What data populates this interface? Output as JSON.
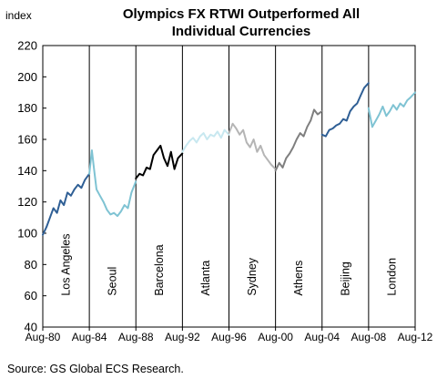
{
  "chart_data": {
    "type": "line",
    "title_lines": [
      "Olympics FX RTWI  Outperformed  All",
      "Individual Currencies"
    ],
    "ylabel": "index",
    "ylim": [
      40,
      220
    ],
    "yticks": [
      "40",
      "60",
      "80",
      "100",
      "120",
      "140",
      "160",
      "180",
      "200",
      "220"
    ],
    "xlim": [
      1980.583,
      2012.583
    ],
    "x_tick_labels": [
      "Aug-80",
      "Aug-84",
      "Aug-88",
      "Aug-92",
      "Aug-96",
      "Aug-00",
      "Aug-04",
      "Aug-08",
      "Aug-12"
    ],
    "grid": false,
    "source": "Source: GS Global ECS Research.",
    "periods": [
      {
        "label": "Los Angeles",
        "color": "#2f5f95",
        "x": [
          1980.58,
          1980.9,
          1981.2,
          1981.5,
          1981.8,
          1982.1,
          1982.4,
          1982.7,
          1983.0,
          1983.3,
          1983.6,
          1983.9,
          1984.2,
          1984.58
        ],
        "y": [
          99,
          104,
          110,
          116,
          113,
          121,
          118,
          126,
          124,
          128,
          131,
          129,
          134,
          138
        ]
      },
      {
        "label": "Seoul",
        "color": "#7fc3d3",
        "x": [
          1984.58,
          1984.8,
          1985.0,
          1985.2,
          1985.5,
          1985.8,
          1986.1,
          1986.4,
          1986.7,
          1987.0,
          1987.3,
          1987.6,
          1987.9,
          1988.2,
          1988.58
        ],
        "y": [
          138,
          153,
          140,
          128,
          124,
          120,
          115,
          112,
          113,
          111,
          114,
          118,
          116,
          126,
          133
        ]
      },
      {
        "label": "Barcelona",
        "color": "#000000",
        "x": [
          1988.58,
          1988.9,
          1989.2,
          1989.5,
          1989.8,
          1990.1,
          1990.4,
          1990.7,
          1991.0,
          1991.3,
          1991.6,
          1991.9,
          1992.2,
          1992.58
        ],
        "y": [
          135,
          138,
          137,
          142,
          141,
          150,
          153,
          156,
          148,
          143,
          152,
          141,
          148,
          151
        ]
      },
      {
        "label": "Atlanta",
        "color": "#c8e8f0",
        "x": [
          1992.58,
          1992.9,
          1993.2,
          1993.5,
          1993.8,
          1994.1,
          1994.4,
          1994.7,
          1995.0,
          1995.3,
          1995.6,
          1995.9,
          1996.2,
          1996.58
        ],
        "y": [
          152,
          156,
          159,
          161,
          158,
          162,
          164,
          160,
          163,
          162,
          165,
          161,
          166,
          163
        ]
      },
      {
        "label": "Sydney",
        "color": "#b5b5b5",
        "x": [
          1996.58,
          1996.9,
          1997.2,
          1997.5,
          1997.8,
          1998.1,
          1998.4,
          1998.7,
          1999.0,
          1999.3,
          1999.6,
          1999.9,
          2000.2,
          2000.58
        ],
        "y": [
          164,
          170,
          167,
          163,
          166,
          158,
          155,
          160,
          152,
          156,
          150,
          147,
          144,
          141
        ]
      },
      {
        "label": "Athens",
        "color": "#7f7f7f",
        "x": [
          2000.58,
          2000.9,
          2001.2,
          2001.5,
          2001.8,
          2002.1,
          2002.4,
          2002.7,
          2003.0,
          2003.3,
          2003.6,
          2003.9,
          2004.2,
          2004.58
        ],
        "y": [
          140,
          145,
          142,
          148,
          151,
          155,
          160,
          164,
          162,
          168,
          172,
          179,
          176,
          178
        ]
      },
      {
        "label": "Beijing",
        "color": "#2f5f95",
        "x": [
          2004.58,
          2004.9,
          2005.2,
          2005.5,
          2005.8,
          2006.1,
          2006.4,
          2006.7,
          2007.0,
          2007.3,
          2007.6,
          2007.9,
          2008.2,
          2008.58
        ],
        "y": [
          163,
          162,
          166,
          167,
          169,
          170,
          173,
          172,
          178,
          181,
          183,
          188,
          193,
          196
        ]
      },
      {
        "label": "London",
        "color": "#7fc3d3",
        "x": [
          2008.58,
          2008.9,
          2009.2,
          2009.5,
          2009.8,
          2010.1,
          2010.4,
          2010.7,
          2011.0,
          2011.3,
          2011.6,
          2011.9,
          2012.2,
          2012.58
        ],
        "y": [
          180,
          168,
          172,
          176,
          181,
          175,
          178,
          182,
          179,
          183,
          181,
          185,
          187,
          190
        ]
      }
    ]
  }
}
